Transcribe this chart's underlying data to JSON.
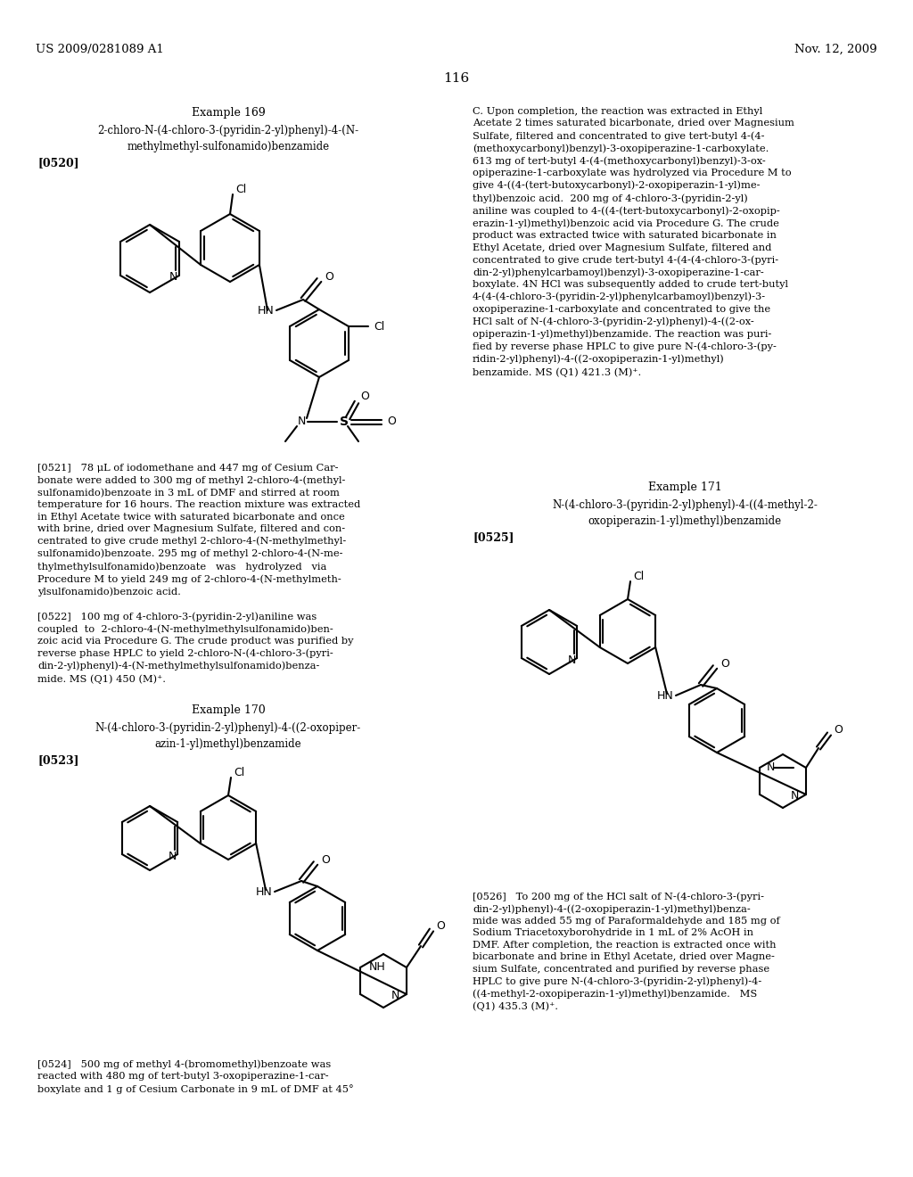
{
  "background_color": "#ffffff",
  "page_number": "116",
  "header_left": "US 2009/0281089 A1",
  "header_right": "Nov. 12, 2009"
}
